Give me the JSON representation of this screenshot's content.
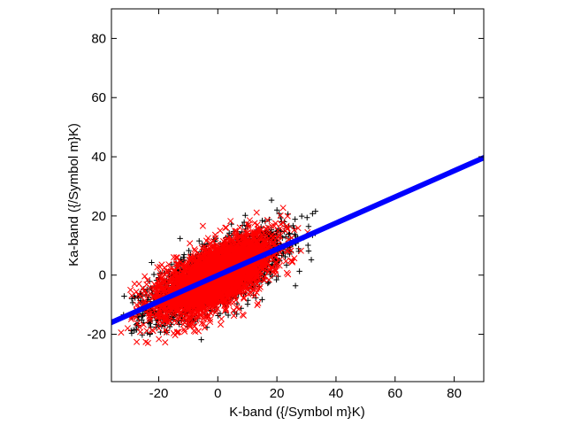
{
  "colors": {
    "series_black": "#000000",
    "series_red": "#ff0000",
    "fit_line": "#0000ff",
    "frame": "#000000",
    "background": "#ffffff"
  },
  "chart_data": {
    "type": "scatter",
    "title": "",
    "xlabel": "K-band ({/Symbol m}K)",
    "ylabel": "Ka-band ({/Symbol m}K)",
    "xlim": [
      -36,
      90
    ],
    "ylim": [
      -36,
      90
    ],
    "xticks": [
      -20,
      0,
      20,
      40,
      60,
      80
    ],
    "yticks": [
      -20,
      0,
      20,
      40,
      60,
      80
    ],
    "grid": false,
    "series": [
      {
        "marker": "plus",
        "color": "#000000",
        "cloud": {
          "x_center": 0,
          "x_sd": 11,
          "slope": 0.45,
          "y_sd": 5,
          "x_min": -33,
          "x_max": 36,
          "count": 2600
        }
      },
      {
        "marker": "x",
        "color": "#ff0000",
        "cloud": {
          "x_center": -1,
          "x_sd": 9.5,
          "slope": 0.45,
          "y_sd": 5,
          "x_min": -33,
          "x_max": 31,
          "count": 3600
        }
      }
    ],
    "fit_line": {
      "x": [
        -36,
        90
      ],
      "y": [
        -16,
        39.7
      ],
      "color": "#0000ff"
    }
  }
}
